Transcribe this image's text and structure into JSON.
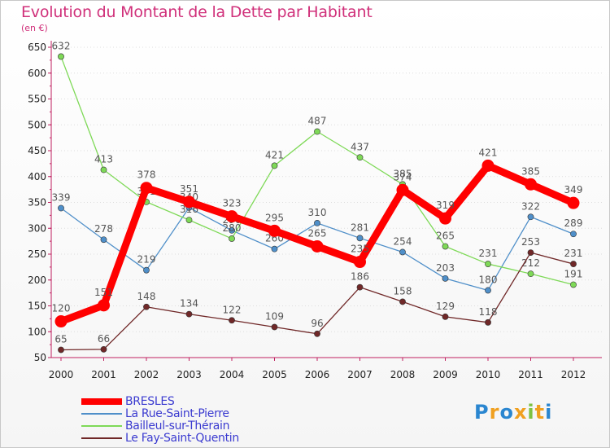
{
  "title": "Evolution du Montant de la Dette par Habitant",
  "subtitle": "(en €)",
  "logo_text": "Proxiti",
  "colors": {
    "title": "#d0307a",
    "axis": "#c02060",
    "legend_text": "#3b3bd0",
    "grid": "#dddddd"
  },
  "chart_data": {
    "type": "line",
    "title": "Evolution du Montant de la Dette par Habitant",
    "ylabel": "(en €)",
    "xlabel": "",
    "x": [
      "2000",
      "2001",
      "2002",
      "2003",
      "2004",
      "2005",
      "2006",
      "2007",
      "2008",
      "2009",
      "2010",
      "2011",
      "2012"
    ],
    "ylim": [
      50,
      650
    ],
    "yticks": [
      50,
      100,
      150,
      200,
      250,
      300,
      350,
      400,
      450,
      500,
      550,
      600,
      650
    ],
    "grid": "horizontal dotted",
    "legend_position": "bottom-left",
    "series": [
      {
        "name": "BRESLES",
        "color": "#ff0000",
        "bold": true,
        "values": [
          120,
          151,
          378,
          351,
          323,
          295,
          265,
          235,
          374,
          319,
          421,
          385,
          349
        ],
        "labels": [
          "120",
          "151",
          "378",
          "351",
          "323",
          "295",
          "265",
          "235",
          "374",
          "319",
          "421",
          "385",
          "349"
        ]
      },
      {
        "name": "La Rue-Saint-Pierre",
        "color": "#4f8fc9",
        "bold": false,
        "values": [
          339,
          278,
          219,
          340,
          296,
          260,
          310,
          281,
          254,
          203,
          180,
          322,
          289
        ],
        "labels": [
          "339",
          "278",
          "219",
          "340",
          "296",
          "260",
          "310",
          "281",
          "254",
          "203",
          "180",
          "322",
          "289"
        ]
      },
      {
        "name": "Bailleul-sur-Thérain",
        "color": "#7ed957",
        "bold": false,
        "values": [
          632,
          413,
          351,
          316,
          280,
          421,
          487,
          437,
          385,
          265,
          231,
          212,
          191
        ],
        "labels": [
          "632",
          "413",
          "351",
          "316",
          "280",
          "421",
          "487",
          "437",
          "385",
          "265",
          "231",
          "212",
          "191"
        ]
      },
      {
        "name": "Le Fay-Saint-Quentin",
        "color": "#702828",
        "bold": false,
        "values": [
          65,
          66,
          148,
          134,
          122,
          109,
          96,
          186,
          158,
          129,
          118,
          253,
          231
        ],
        "labels": [
          "65",
          "66",
          "148",
          "134",
          "122",
          "109",
          "96",
          "186",
          "158",
          "129",
          "118",
          "253",
          "231"
        ]
      }
    ]
  }
}
